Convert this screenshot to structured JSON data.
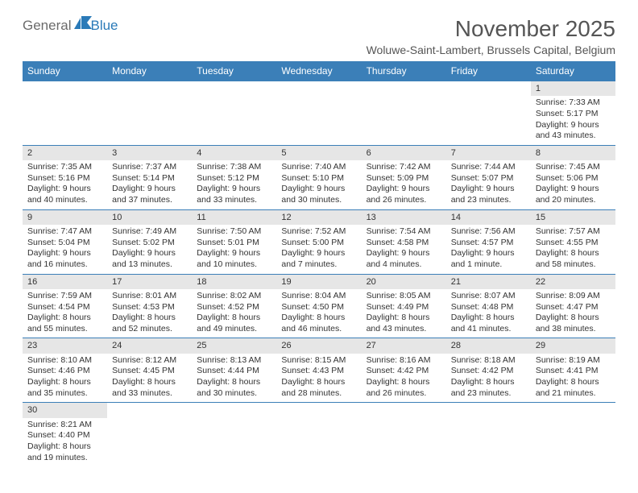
{
  "logo": {
    "text1": "General",
    "text2": "Blue"
  },
  "title": "November 2025",
  "location": "Woluwe-Saint-Lambert, Brussels Capital, Belgium",
  "colors": {
    "header_bg": "#3b7fb8",
    "header_fg": "#ffffff",
    "daynum_bg": "#e6e6e6",
    "week_border": "#3b7fb8",
    "logo_gray": "#6b6b6b",
    "logo_blue": "#2a7ab8",
    "title_color": "#555555"
  },
  "day_names": [
    "Sunday",
    "Monday",
    "Tuesday",
    "Wednesday",
    "Thursday",
    "Friday",
    "Saturday"
  ],
  "weeks": [
    [
      null,
      null,
      null,
      null,
      null,
      null,
      {
        "n": "1",
        "sr": "Sunrise: 7:33 AM",
        "ss": "Sunset: 5:17 PM",
        "d1": "Daylight: 9 hours",
        "d2": "and 43 minutes."
      }
    ],
    [
      {
        "n": "2",
        "sr": "Sunrise: 7:35 AM",
        "ss": "Sunset: 5:16 PM",
        "d1": "Daylight: 9 hours",
        "d2": "and 40 minutes."
      },
      {
        "n": "3",
        "sr": "Sunrise: 7:37 AM",
        "ss": "Sunset: 5:14 PM",
        "d1": "Daylight: 9 hours",
        "d2": "and 37 minutes."
      },
      {
        "n": "4",
        "sr": "Sunrise: 7:38 AM",
        "ss": "Sunset: 5:12 PM",
        "d1": "Daylight: 9 hours",
        "d2": "and 33 minutes."
      },
      {
        "n": "5",
        "sr": "Sunrise: 7:40 AM",
        "ss": "Sunset: 5:10 PM",
        "d1": "Daylight: 9 hours",
        "d2": "and 30 minutes."
      },
      {
        "n": "6",
        "sr": "Sunrise: 7:42 AM",
        "ss": "Sunset: 5:09 PM",
        "d1": "Daylight: 9 hours",
        "d2": "and 26 minutes."
      },
      {
        "n": "7",
        "sr": "Sunrise: 7:44 AM",
        "ss": "Sunset: 5:07 PM",
        "d1": "Daylight: 9 hours",
        "d2": "and 23 minutes."
      },
      {
        "n": "8",
        "sr": "Sunrise: 7:45 AM",
        "ss": "Sunset: 5:06 PM",
        "d1": "Daylight: 9 hours",
        "d2": "and 20 minutes."
      }
    ],
    [
      {
        "n": "9",
        "sr": "Sunrise: 7:47 AM",
        "ss": "Sunset: 5:04 PM",
        "d1": "Daylight: 9 hours",
        "d2": "and 16 minutes."
      },
      {
        "n": "10",
        "sr": "Sunrise: 7:49 AM",
        "ss": "Sunset: 5:02 PM",
        "d1": "Daylight: 9 hours",
        "d2": "and 13 minutes."
      },
      {
        "n": "11",
        "sr": "Sunrise: 7:50 AM",
        "ss": "Sunset: 5:01 PM",
        "d1": "Daylight: 9 hours",
        "d2": "and 10 minutes."
      },
      {
        "n": "12",
        "sr": "Sunrise: 7:52 AM",
        "ss": "Sunset: 5:00 PM",
        "d1": "Daylight: 9 hours",
        "d2": "and 7 minutes."
      },
      {
        "n": "13",
        "sr": "Sunrise: 7:54 AM",
        "ss": "Sunset: 4:58 PM",
        "d1": "Daylight: 9 hours",
        "d2": "and 4 minutes."
      },
      {
        "n": "14",
        "sr": "Sunrise: 7:56 AM",
        "ss": "Sunset: 4:57 PM",
        "d1": "Daylight: 9 hours",
        "d2": "and 1 minute."
      },
      {
        "n": "15",
        "sr": "Sunrise: 7:57 AM",
        "ss": "Sunset: 4:55 PM",
        "d1": "Daylight: 8 hours",
        "d2": "and 58 minutes."
      }
    ],
    [
      {
        "n": "16",
        "sr": "Sunrise: 7:59 AM",
        "ss": "Sunset: 4:54 PM",
        "d1": "Daylight: 8 hours",
        "d2": "and 55 minutes."
      },
      {
        "n": "17",
        "sr": "Sunrise: 8:01 AM",
        "ss": "Sunset: 4:53 PM",
        "d1": "Daylight: 8 hours",
        "d2": "and 52 minutes."
      },
      {
        "n": "18",
        "sr": "Sunrise: 8:02 AM",
        "ss": "Sunset: 4:52 PM",
        "d1": "Daylight: 8 hours",
        "d2": "and 49 minutes."
      },
      {
        "n": "19",
        "sr": "Sunrise: 8:04 AM",
        "ss": "Sunset: 4:50 PM",
        "d1": "Daylight: 8 hours",
        "d2": "and 46 minutes."
      },
      {
        "n": "20",
        "sr": "Sunrise: 8:05 AM",
        "ss": "Sunset: 4:49 PM",
        "d1": "Daylight: 8 hours",
        "d2": "and 43 minutes."
      },
      {
        "n": "21",
        "sr": "Sunrise: 8:07 AM",
        "ss": "Sunset: 4:48 PM",
        "d1": "Daylight: 8 hours",
        "d2": "and 41 minutes."
      },
      {
        "n": "22",
        "sr": "Sunrise: 8:09 AM",
        "ss": "Sunset: 4:47 PM",
        "d1": "Daylight: 8 hours",
        "d2": "and 38 minutes."
      }
    ],
    [
      {
        "n": "23",
        "sr": "Sunrise: 8:10 AM",
        "ss": "Sunset: 4:46 PM",
        "d1": "Daylight: 8 hours",
        "d2": "and 35 minutes."
      },
      {
        "n": "24",
        "sr": "Sunrise: 8:12 AM",
        "ss": "Sunset: 4:45 PM",
        "d1": "Daylight: 8 hours",
        "d2": "and 33 minutes."
      },
      {
        "n": "25",
        "sr": "Sunrise: 8:13 AM",
        "ss": "Sunset: 4:44 PM",
        "d1": "Daylight: 8 hours",
        "d2": "and 30 minutes."
      },
      {
        "n": "26",
        "sr": "Sunrise: 8:15 AM",
        "ss": "Sunset: 4:43 PM",
        "d1": "Daylight: 8 hours",
        "d2": "and 28 minutes."
      },
      {
        "n": "27",
        "sr": "Sunrise: 8:16 AM",
        "ss": "Sunset: 4:42 PM",
        "d1": "Daylight: 8 hours",
        "d2": "and 26 minutes."
      },
      {
        "n": "28",
        "sr": "Sunrise: 8:18 AM",
        "ss": "Sunset: 4:42 PM",
        "d1": "Daylight: 8 hours",
        "d2": "and 23 minutes."
      },
      {
        "n": "29",
        "sr": "Sunrise: 8:19 AM",
        "ss": "Sunset: 4:41 PM",
        "d1": "Daylight: 8 hours",
        "d2": "and 21 minutes."
      }
    ],
    [
      {
        "n": "30",
        "sr": "Sunrise: 8:21 AM",
        "ss": "Sunset: 4:40 PM",
        "d1": "Daylight: 8 hours",
        "d2": "and 19 minutes."
      },
      null,
      null,
      null,
      null,
      null,
      null
    ]
  ]
}
